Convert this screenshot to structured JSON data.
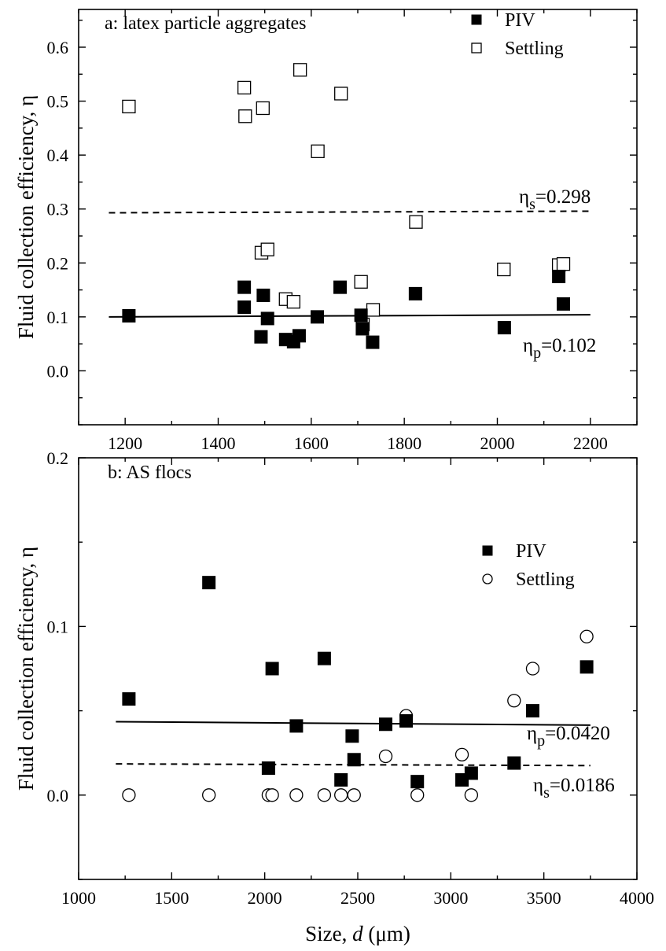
{
  "chart_data": [
    {
      "type": "scatter",
      "title": "a: latex particle aggregates",
      "xlabel": "",
      "ylabel": "Fluid collection efficiency, η",
      "xlim": [
        1100,
        2300
      ],
      "ylim": [
        -0.1,
        0.67
      ],
      "xticks": [
        "1200",
        "1400",
        "1600",
        "1800",
        "2000",
        "2200"
      ],
      "yticks": [
        "0.0",
        "0.1",
        "0.2",
        "0.3",
        "0.4",
        "0.5",
        "0.6"
      ],
      "legend_position": "top-right",
      "series": [
        {
          "name": "PIV",
          "marker": "filled-square",
          "points": [
            [
              1208,
              0.102
            ],
            [
              1456,
              0.155
            ],
            [
              1456,
              0.118
            ],
            [
              1492,
              0.063
            ],
            [
              1497,
              0.14
            ],
            [
              1506,
              0.097
            ],
            [
              1545,
              0.058
            ],
            [
              1562,
              0.054
            ],
            [
              1574,
              0.065
            ],
            [
              1613,
              0.1
            ],
            [
              1662,
              0.155
            ],
            [
              1707,
              0.103
            ],
            [
              1710,
              0.078
            ],
            [
              1732,
              0.053
            ],
            [
              1824,
              0.143
            ],
            [
              2015,
              0.08
            ],
            [
              2132,
              0.175
            ],
            [
              2142,
              0.124
            ]
          ]
        },
        {
          "name": "Settling",
          "marker": "open-square",
          "points": [
            [
              1208,
              0.49
            ],
            [
              1456,
              0.525
            ],
            [
              1458,
              0.472
            ],
            [
              1496,
              0.487
            ],
            [
              1576,
              0.558
            ],
            [
              1614,
              0.407
            ],
            [
              1664,
              0.514
            ],
            [
              1825,
              0.276
            ],
            [
              1493,
              0.219
            ],
            [
              1506,
              0.225
            ],
            [
              1545,
              0.133
            ],
            [
              1562,
              0.128
            ],
            [
              1707,
              0.165
            ],
            [
              1711,
              0.086
            ],
            [
              1733,
              0.113
            ],
            [
              2014,
              0.188
            ],
            [
              2132,
              0.196
            ],
            [
              2142,
              0.198
            ]
          ]
        }
      ],
      "fit_lines": [
        {
          "label": "ηs=0.298",
          "style": "dashed",
          "x": [
            1165,
            2200
          ],
          "y": [
            0.293,
            0.296
          ]
        },
        {
          "label": "ηp=0.102",
          "style": "solid",
          "x": [
            1165,
            2200
          ],
          "y": [
            0.1,
            0.104
          ]
        }
      ]
    },
    {
      "type": "scatter",
      "title": "b: AS flocs",
      "xlabel": "Size, d (μm)",
      "ylabel": "Fluid collection efficiency, η",
      "xlim": [
        1000,
        4000
      ],
      "ylim": [
        -0.05,
        0.2
      ],
      "xticks": [
        "1000",
        "1500",
        "2000",
        "2500",
        "3000",
        "3500",
        "4000"
      ],
      "yticks": [
        "0.0",
        "0.1",
        "0.2"
      ],
      "legend_position": "top-right",
      "series": [
        {
          "name": "PIV",
          "marker": "filled-square",
          "points": [
            [
              1270,
              0.057
            ],
            [
              1700,
              0.126
            ],
            [
              2020,
              0.016
            ],
            [
              2040,
              0.075
            ],
            [
              2170,
              0.041
            ],
            [
              2320,
              0.081
            ],
            [
              2410,
              0.009
            ],
            [
              2470,
              0.035
            ],
            [
              2480,
              0.021
            ],
            [
              2650,
              0.042
            ],
            [
              2760,
              0.044
            ],
            [
              2820,
              0.008
            ],
            [
              3060,
              0.009
            ],
            [
              3110,
              0.013
            ],
            [
              3340,
              0.019
            ],
            [
              3440,
              0.05
            ],
            [
              3730,
              0.076
            ]
          ]
        },
        {
          "name": "Settling",
          "marker": "open-circle",
          "points": [
            [
              1270,
              0.0
            ],
            [
              1700,
              0.0
            ],
            [
              2020,
              0.0
            ],
            [
              2040,
              0.0
            ],
            [
              2170,
              0.0
            ],
            [
              2320,
              0.0
            ],
            [
              2410,
              0.0
            ],
            [
              2480,
              0.0
            ],
            [
              2650,
              0.023
            ],
            [
              2760,
              0.047
            ],
            [
              2820,
              0.0
            ],
            [
              3060,
              0.024
            ],
            [
              3110,
              0.0
            ],
            [
              3340,
              0.056
            ],
            [
              3440,
              0.075
            ],
            [
              3730,
              0.094
            ]
          ]
        }
      ],
      "fit_lines": [
        {
          "label": "ηp=0.0420",
          "style": "solid",
          "x": [
            1200,
            3750
          ],
          "y": [
            0.0435,
            0.0415
          ]
        },
        {
          "label": "ηs=0.0186",
          "style": "dashed",
          "x": [
            1200,
            3750
          ],
          "y": [
            0.0185,
            0.0175
          ]
        }
      ]
    }
  ]
}
